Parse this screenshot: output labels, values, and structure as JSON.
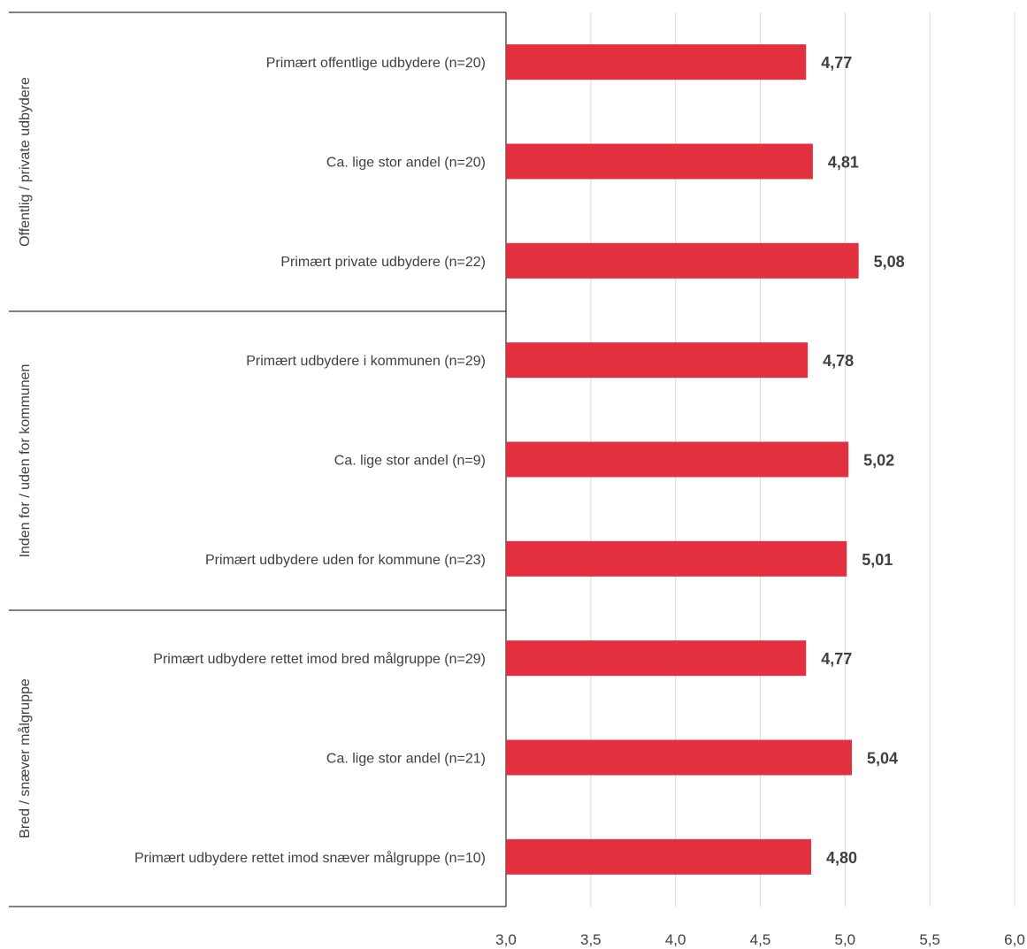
{
  "chart_data": {
    "type": "bar",
    "orientation": "horizontal",
    "xlim": [
      3.0,
      6.0
    ],
    "x_ticks": [
      "3,0",
      "3,5",
      "4,0",
      "4,5",
      "5,0",
      "5,5",
      "6,0"
    ],
    "x_tick_values": [
      3.0,
      3.5,
      4.0,
      4.5,
      5.0,
      5.5,
      6.0
    ],
    "bar_color": "#e3303f",
    "grid": true,
    "groups": [
      {
        "label": "Offentlig / private udbydere",
        "items": [
          {
            "category": "Primært offentlige udbydere (n=20)",
            "value": 4.77,
            "value_label": "4,77"
          },
          {
            "category": "Ca. lige stor andel (n=20)",
            "value": 4.81,
            "value_label": "4,81"
          },
          {
            "category": "Primært private udbydere (n=22)",
            "value": 5.08,
            "value_label": "5,08"
          }
        ]
      },
      {
        "label": "Inden for / uden for kommunen",
        "items": [
          {
            "category": "Primært udbydere i kommunen (n=29)",
            "value": 4.78,
            "value_label": "4,78"
          },
          {
            "category": "Ca. lige stor andel (n=9)",
            "value": 5.02,
            "value_label": "5,02"
          },
          {
            "category": "Primært udbydere uden for kommune (n=23)",
            "value": 5.01,
            "value_label": "5,01"
          }
        ]
      },
      {
        "label": "Bred / snæver målgruppe",
        "items": [
          {
            "category": "Primært udbydere rettet imod bred målgruppe (n=29)",
            "value": 4.77,
            "value_label": "4,77"
          },
          {
            "category": "Ca. lige stor andel (n=21)",
            "value": 5.04,
            "value_label": "5,04"
          },
          {
            "category": "Primært udbydere rettet imod snæver målgruppe (n=10)",
            "value": 4.8,
            "value_label": "4,80"
          }
        ]
      }
    ]
  }
}
